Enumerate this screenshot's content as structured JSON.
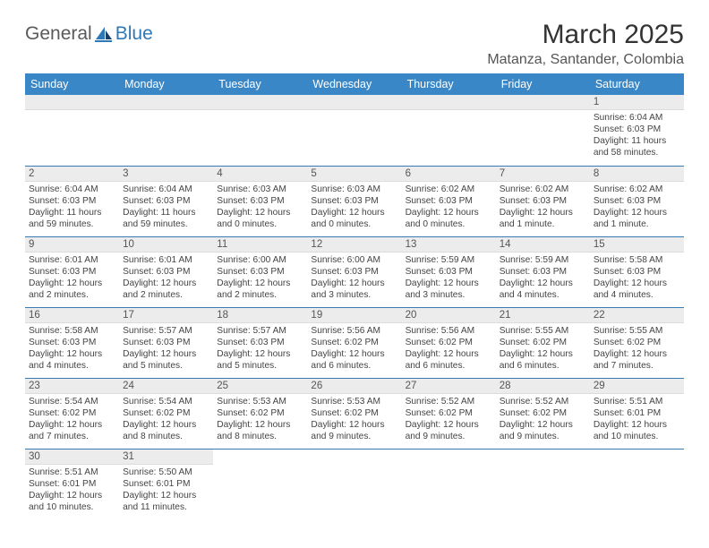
{
  "logo": {
    "general": "General",
    "blue": "Blue"
  },
  "title": "March 2025",
  "location": "Matanza, Santander, Colombia",
  "colors": {
    "header_bg": "#3a87c7",
    "row_divider": "#3a7ab2",
    "daynum_bg": "#ececec",
    "logo_blue": "#2f78b7"
  },
  "weekdays": [
    "Sunday",
    "Monday",
    "Tuesday",
    "Wednesday",
    "Thursday",
    "Friday",
    "Saturday"
  ],
  "first_weekday_index": 6,
  "days": [
    {
      "n": 1,
      "sunrise": "Sunrise: 6:04 AM",
      "sunset": "Sunset: 6:03 PM",
      "daylight": "Daylight: 11 hours and 58 minutes."
    },
    {
      "n": 2,
      "sunrise": "Sunrise: 6:04 AM",
      "sunset": "Sunset: 6:03 PM",
      "daylight": "Daylight: 11 hours and 59 minutes."
    },
    {
      "n": 3,
      "sunrise": "Sunrise: 6:04 AM",
      "sunset": "Sunset: 6:03 PM",
      "daylight": "Daylight: 11 hours and 59 minutes."
    },
    {
      "n": 4,
      "sunrise": "Sunrise: 6:03 AM",
      "sunset": "Sunset: 6:03 PM",
      "daylight": "Daylight: 12 hours and 0 minutes."
    },
    {
      "n": 5,
      "sunrise": "Sunrise: 6:03 AM",
      "sunset": "Sunset: 6:03 PM",
      "daylight": "Daylight: 12 hours and 0 minutes."
    },
    {
      "n": 6,
      "sunrise": "Sunrise: 6:02 AM",
      "sunset": "Sunset: 6:03 PM",
      "daylight": "Daylight: 12 hours and 0 minutes."
    },
    {
      "n": 7,
      "sunrise": "Sunrise: 6:02 AM",
      "sunset": "Sunset: 6:03 PM",
      "daylight": "Daylight: 12 hours and 1 minute."
    },
    {
      "n": 8,
      "sunrise": "Sunrise: 6:02 AM",
      "sunset": "Sunset: 6:03 PM",
      "daylight": "Daylight: 12 hours and 1 minute."
    },
    {
      "n": 9,
      "sunrise": "Sunrise: 6:01 AM",
      "sunset": "Sunset: 6:03 PM",
      "daylight": "Daylight: 12 hours and 2 minutes."
    },
    {
      "n": 10,
      "sunrise": "Sunrise: 6:01 AM",
      "sunset": "Sunset: 6:03 PM",
      "daylight": "Daylight: 12 hours and 2 minutes."
    },
    {
      "n": 11,
      "sunrise": "Sunrise: 6:00 AM",
      "sunset": "Sunset: 6:03 PM",
      "daylight": "Daylight: 12 hours and 2 minutes."
    },
    {
      "n": 12,
      "sunrise": "Sunrise: 6:00 AM",
      "sunset": "Sunset: 6:03 PM",
      "daylight": "Daylight: 12 hours and 3 minutes."
    },
    {
      "n": 13,
      "sunrise": "Sunrise: 5:59 AM",
      "sunset": "Sunset: 6:03 PM",
      "daylight": "Daylight: 12 hours and 3 minutes."
    },
    {
      "n": 14,
      "sunrise": "Sunrise: 5:59 AM",
      "sunset": "Sunset: 6:03 PM",
      "daylight": "Daylight: 12 hours and 4 minutes."
    },
    {
      "n": 15,
      "sunrise": "Sunrise: 5:58 AM",
      "sunset": "Sunset: 6:03 PM",
      "daylight": "Daylight: 12 hours and 4 minutes."
    },
    {
      "n": 16,
      "sunrise": "Sunrise: 5:58 AM",
      "sunset": "Sunset: 6:03 PM",
      "daylight": "Daylight: 12 hours and 4 minutes."
    },
    {
      "n": 17,
      "sunrise": "Sunrise: 5:57 AM",
      "sunset": "Sunset: 6:03 PM",
      "daylight": "Daylight: 12 hours and 5 minutes."
    },
    {
      "n": 18,
      "sunrise": "Sunrise: 5:57 AM",
      "sunset": "Sunset: 6:03 PM",
      "daylight": "Daylight: 12 hours and 5 minutes."
    },
    {
      "n": 19,
      "sunrise": "Sunrise: 5:56 AM",
      "sunset": "Sunset: 6:02 PM",
      "daylight": "Daylight: 12 hours and 6 minutes."
    },
    {
      "n": 20,
      "sunrise": "Sunrise: 5:56 AM",
      "sunset": "Sunset: 6:02 PM",
      "daylight": "Daylight: 12 hours and 6 minutes."
    },
    {
      "n": 21,
      "sunrise": "Sunrise: 5:55 AM",
      "sunset": "Sunset: 6:02 PM",
      "daylight": "Daylight: 12 hours and 6 minutes."
    },
    {
      "n": 22,
      "sunrise": "Sunrise: 5:55 AM",
      "sunset": "Sunset: 6:02 PM",
      "daylight": "Daylight: 12 hours and 7 minutes."
    },
    {
      "n": 23,
      "sunrise": "Sunrise: 5:54 AM",
      "sunset": "Sunset: 6:02 PM",
      "daylight": "Daylight: 12 hours and 7 minutes."
    },
    {
      "n": 24,
      "sunrise": "Sunrise: 5:54 AM",
      "sunset": "Sunset: 6:02 PM",
      "daylight": "Daylight: 12 hours and 8 minutes."
    },
    {
      "n": 25,
      "sunrise": "Sunrise: 5:53 AM",
      "sunset": "Sunset: 6:02 PM",
      "daylight": "Daylight: 12 hours and 8 minutes."
    },
    {
      "n": 26,
      "sunrise": "Sunrise: 5:53 AM",
      "sunset": "Sunset: 6:02 PM",
      "daylight": "Daylight: 12 hours and 9 minutes."
    },
    {
      "n": 27,
      "sunrise": "Sunrise: 5:52 AM",
      "sunset": "Sunset: 6:02 PM",
      "daylight": "Daylight: 12 hours and 9 minutes."
    },
    {
      "n": 28,
      "sunrise": "Sunrise: 5:52 AM",
      "sunset": "Sunset: 6:02 PM",
      "daylight": "Daylight: 12 hours and 9 minutes."
    },
    {
      "n": 29,
      "sunrise": "Sunrise: 5:51 AM",
      "sunset": "Sunset: 6:01 PM",
      "daylight": "Daylight: 12 hours and 10 minutes."
    },
    {
      "n": 30,
      "sunrise": "Sunrise: 5:51 AM",
      "sunset": "Sunset: 6:01 PM",
      "daylight": "Daylight: 12 hours and 10 minutes."
    },
    {
      "n": 31,
      "sunrise": "Sunrise: 5:50 AM",
      "sunset": "Sunset: 6:01 PM",
      "daylight": "Daylight: 12 hours and 11 minutes."
    }
  ]
}
